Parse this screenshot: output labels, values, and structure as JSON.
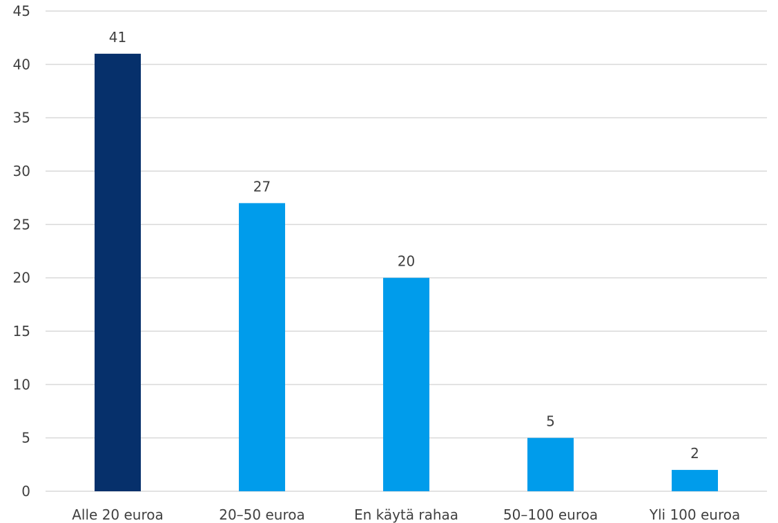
{
  "chart_data": {
    "type": "bar",
    "title": "",
    "xlabel": "",
    "ylabel": "",
    "categories": [
      "Alle 20 euroa",
      "20–50 euroa",
      "En käytä rahaa",
      "50–100 euroa",
      "Yli 100 euroa"
    ],
    "values": [
      41,
      27,
      20,
      5,
      2
    ],
    "value_labels": [
      "41",
      "27",
      "20",
      "5",
      "2"
    ],
    "ylim": [
      0,
      45
    ],
    "yticks": [
      "0",
      "5",
      "10",
      "15",
      "20",
      "25",
      "30",
      "35",
      "40",
      "45"
    ],
    "grid": true,
    "legend": "none",
    "colors": [
      "#06306b",
      "#009ceb",
      "#009ceb",
      "#009ceb",
      "#009ceb"
    ]
  }
}
